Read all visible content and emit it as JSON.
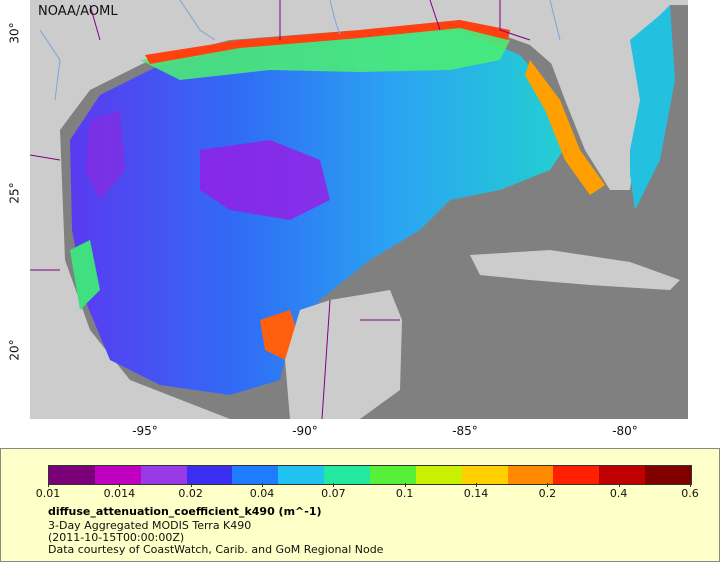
{
  "map": {
    "credit": "NOAA/AOML",
    "lat_ticks": [
      "30°",
      "25°",
      "20°"
    ],
    "lon_ticks": [
      "-95°",
      "-90°",
      "-85°",
      "-80°"
    ],
    "land_color": "#cccccc",
    "nodata_color": "#808080",
    "border_color": "#800080",
    "river_color": "#7aa6d6"
  },
  "legend": {
    "ticks": [
      "0.01",
      "0.014",
      "0.02",
      "0.04",
      "0.07",
      "0.1",
      "0.14",
      "0.2",
      "0.4",
      "0.6"
    ],
    "colors": [
      "#7a007a",
      "#c000c0",
      "#9a3ae6",
      "#3a2ef0",
      "#1f7cff",
      "#22c2f0",
      "#23e8a0",
      "#56f038",
      "#c8f000",
      "#ffd000",
      "#ff8a00",
      "#ff2000",
      "#c00000",
      "#800000"
    ],
    "title": "diffuse_attenuation_coefficient_k490 (m^-1)",
    "line1": "3-Day Aggregated MODIS Terra K490",
    "line2": "(2011-10-15T00:00:00Z)",
    "line3": "Data courtesy of CoastWatch, Carib. and GoM Regional Node"
  }
}
